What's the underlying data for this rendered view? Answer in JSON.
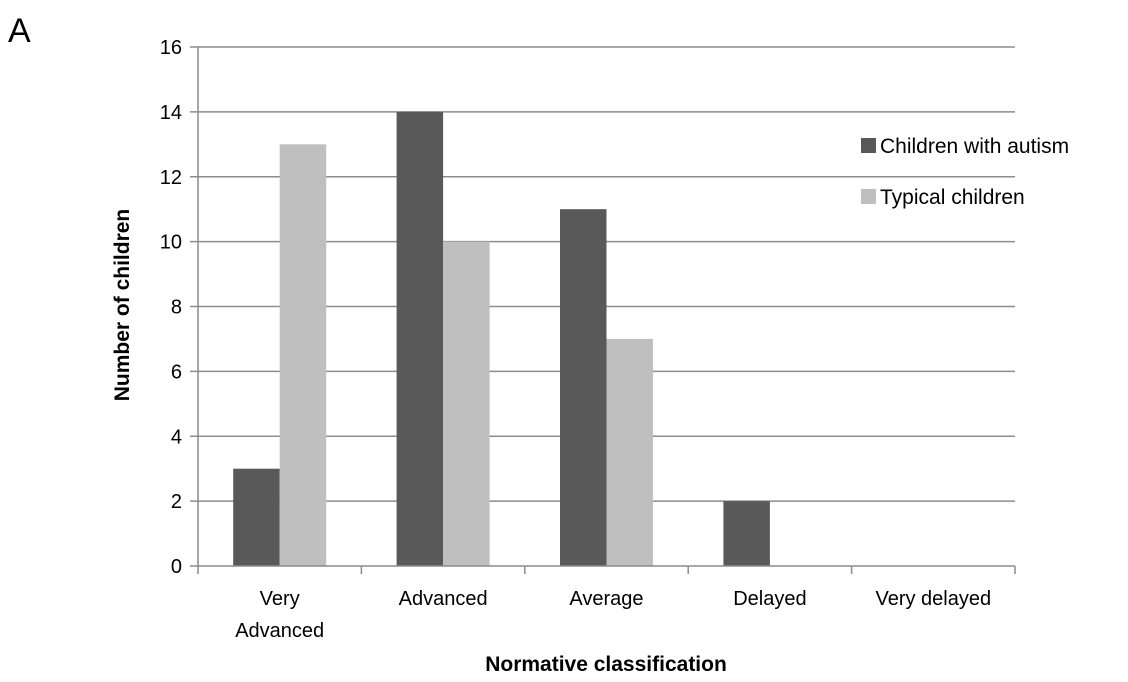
{
  "panel_label": "A",
  "chart_data": {
    "type": "bar",
    "title": "",
    "xlabel": "Normative classification",
    "ylabel": "Number of children",
    "categories": [
      [
        "Very",
        "Advanced"
      ],
      [
        "Advanced"
      ],
      [
        "Average"
      ],
      [
        "Delayed"
      ],
      [
        "Very delayed"
      ]
    ],
    "series": [
      {
        "name": "Children with autism",
        "values": [
          3,
          14,
          11,
          2,
          0
        ],
        "color": "#595959"
      },
      {
        "name": "Typical children",
        "values": [
          13,
          10,
          7,
          0,
          0
        ],
        "color": "#bfbfbf"
      }
    ],
    "ylim": [
      0,
      16
    ],
    "yticks": [
      0,
      2,
      4,
      6,
      8,
      10,
      12,
      14,
      16
    ],
    "grid": true,
    "legend_position": "right"
  }
}
